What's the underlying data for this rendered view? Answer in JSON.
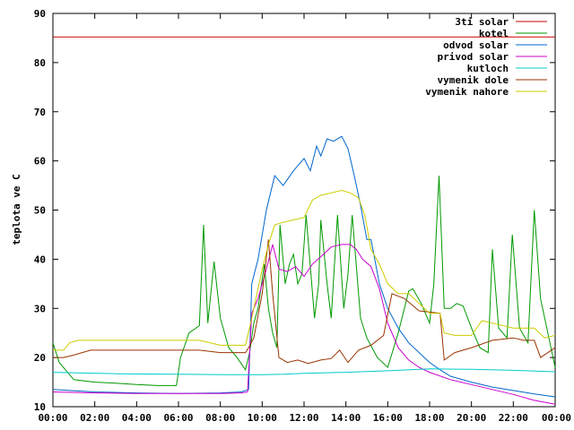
{
  "chart_data": {
    "type": "line",
    "title": "",
    "xlabel": "",
    "ylabel": "teplota ve C",
    "ylim": [
      10,
      90
    ],
    "xlim": [
      0,
      24
    ],
    "grid": false,
    "legend_position": "top-right",
    "x_tick_labels": [
      "00:00",
      "02:00",
      "04:00",
      "06:00",
      "08:00",
      "10:00",
      "12:00",
      "14:00",
      "16:00",
      "18:00",
      "20:00",
      "22:00",
      "00:00"
    ],
    "y_tick_labels": [
      "10",
      "20",
      "30",
      "40",
      "50",
      "60",
      "70",
      "80",
      "90"
    ],
    "series": [
      {
        "name": "3ti solar",
        "color": "#cc0000",
        "points": [
          [
            0,
            85.2
          ],
          [
            24,
            85.2
          ]
        ]
      },
      {
        "name": "kotel",
        "color": "#009900",
        "points": [
          [
            0,
            23
          ],
          [
            0.3,
            19
          ],
          [
            1,
            15.5
          ],
          [
            2,
            15
          ],
          [
            3,
            14.8
          ],
          [
            4,
            14.5
          ],
          [
            5,
            14.3
          ],
          [
            5.9,
            14.3
          ],
          [
            6.1,
            20
          ],
          [
            6.5,
            25
          ],
          [
            7,
            26.5
          ],
          [
            7.2,
            47
          ],
          [
            7.4,
            27
          ],
          [
            7.7,
            39.5
          ],
          [
            8,
            28
          ],
          [
            8.4,
            22
          ],
          [
            8.8,
            20
          ],
          [
            9.2,
            17.5
          ],
          [
            9.4,
            21
          ],
          [
            9.6,
            27
          ],
          [
            9.8,
            30
          ],
          [
            10.1,
            39
          ],
          [
            10.3,
            30
          ],
          [
            10.5,
            25
          ],
          [
            10.7,
            22
          ],
          [
            10.85,
            47
          ],
          [
            11.1,
            35
          ],
          [
            11.3,
            39
          ],
          [
            11.5,
            41
          ],
          [
            11.7,
            35
          ],
          [
            11.9,
            37
          ],
          [
            12.1,
            49
          ],
          [
            12.5,
            28
          ],
          [
            12.7,
            35
          ],
          [
            12.8,
            48
          ],
          [
            13.1,
            35
          ],
          [
            13.3,
            28
          ],
          [
            13.6,
            49
          ],
          [
            13.9,
            30
          ],
          [
            14.1,
            37
          ],
          [
            14.3,
            49
          ],
          [
            14.7,
            28
          ],
          [
            15,
            24
          ],
          [
            15.5,
            20
          ],
          [
            16,
            18
          ],
          [
            16.5,
            25
          ],
          [
            17,
            33.5
          ],
          [
            17.2,
            34
          ],
          [
            17.6,
            31
          ],
          [
            18,
            27
          ],
          [
            18.2,
            35
          ],
          [
            18.45,
            57
          ],
          [
            18.7,
            30
          ],
          [
            19,
            30
          ],
          [
            19.3,
            31
          ],
          [
            19.6,
            30.5
          ],
          [
            20,
            26
          ],
          [
            20.4,
            22
          ],
          [
            20.8,
            21
          ],
          [
            21,
            42
          ],
          [
            21.3,
            26
          ],
          [
            21.7,
            24
          ],
          [
            21.95,
            45
          ],
          [
            22.3,
            26
          ],
          [
            22.7,
            23
          ],
          [
            23,
            50
          ],
          [
            23.3,
            32
          ],
          [
            23.7,
            24
          ],
          [
            24,
            18
          ]
        ]
      },
      {
        "name": "odvod solar",
        "color": "#0066cc",
        "points": [
          [
            0,
            13.5
          ],
          [
            2,
            13
          ],
          [
            4,
            12.8
          ],
          [
            6,
            12.7
          ],
          [
            8,
            12.8
          ],
          [
            9,
            13
          ],
          [
            9.35,
            13.5
          ],
          [
            9.5,
            35
          ],
          [
            9.8,
            40
          ],
          [
            10.2,
            50
          ],
          [
            10.6,
            57
          ],
          [
            11,
            55
          ],
          [
            11.5,
            58
          ],
          [
            12,
            60.5
          ],
          [
            12.3,
            58
          ],
          [
            12.6,
            63
          ],
          [
            12.8,
            61
          ],
          [
            13.1,
            64.5
          ],
          [
            13.4,
            64
          ],
          [
            13.8,
            65
          ],
          [
            14.1,
            62.5
          ],
          [
            14.4,
            57
          ],
          [
            14.7,
            51
          ],
          [
            15,
            44
          ],
          [
            15.2,
            44
          ],
          [
            15.6,
            35
          ],
          [
            16,
            30
          ],
          [
            16.5,
            26
          ],
          [
            17,
            23
          ],
          [
            17.5,
            21
          ],
          [
            18,
            19
          ],
          [
            18.5,
            17.5
          ],
          [
            19,
            16.2
          ],
          [
            20,
            15
          ],
          [
            21,
            14
          ],
          [
            22,
            13.3
          ],
          [
            23,
            12.6
          ],
          [
            24,
            12
          ]
        ]
      },
      {
        "name": "privod solar",
        "color": "#cc00cc",
        "points": [
          [
            0,
            13
          ],
          [
            2,
            12.8
          ],
          [
            4,
            12.7
          ],
          [
            6,
            12.7
          ],
          [
            8,
            12.7
          ],
          [
            9,
            12.8
          ],
          [
            9.3,
            13
          ],
          [
            9.5,
            29
          ],
          [
            9.8,
            32
          ],
          [
            10.2,
            38
          ],
          [
            10.5,
            43
          ],
          [
            10.8,
            38
          ],
          [
            11.2,
            37.5
          ],
          [
            11.6,
            38.5
          ],
          [
            12,
            36.5
          ],
          [
            12.4,
            39
          ],
          [
            12.8,
            40.5
          ],
          [
            13.3,
            42.5
          ],
          [
            13.8,
            43
          ],
          [
            14.2,
            43
          ],
          [
            14.5,
            42
          ],
          [
            14.8,
            40
          ],
          [
            15.2,
            38.5
          ],
          [
            15.6,
            34
          ],
          [
            16,
            27
          ],
          [
            16.5,
            22
          ],
          [
            17,
            19.5
          ],
          [
            17.5,
            18
          ],
          [
            18,
            17
          ],
          [
            19,
            15.5
          ],
          [
            20,
            14.5
          ],
          [
            21,
            13.5
          ],
          [
            22,
            12.5
          ],
          [
            23,
            11.3
          ],
          [
            24,
            10.5
          ]
        ]
      },
      {
        "name": "kutloch",
        "color": "#00cccc",
        "points": [
          [
            0,
            17
          ],
          [
            3,
            16.7
          ],
          [
            6,
            16.6
          ],
          [
            9,
            16.5
          ],
          [
            10,
            16.5
          ],
          [
            11,
            16.6
          ],
          [
            12,
            16.8
          ],
          [
            14,
            17
          ],
          [
            16,
            17.3
          ],
          [
            18,
            17.7
          ],
          [
            20,
            17.6
          ],
          [
            22,
            17.4
          ],
          [
            24,
            17.1
          ]
        ]
      },
      {
        "name": "vymenik dole",
        "color": "#993300",
        "points": [
          [
            0,
            20
          ],
          [
            0.5,
            20
          ],
          [
            1,
            20.5
          ],
          [
            1.8,
            21.5
          ],
          [
            3,
            21.5
          ],
          [
            5,
            21.5
          ],
          [
            6,
            21.5
          ],
          [
            7,
            21.5
          ],
          [
            8,
            21
          ],
          [
            9.2,
            21
          ],
          [
            9.35,
            22
          ],
          [
            9.6,
            24
          ],
          [
            10,
            33
          ],
          [
            10.3,
            44
          ],
          [
            10.5,
            33
          ],
          [
            10.8,
            20
          ],
          [
            11.2,
            19
          ],
          [
            11.7,
            19.5
          ],
          [
            12.2,
            18.8
          ],
          [
            12.8,
            19.5
          ],
          [
            13.3,
            19.8
          ],
          [
            13.7,
            21.5
          ],
          [
            14.1,
            19
          ],
          [
            14.6,
            21.5
          ],
          [
            15.2,
            22.5
          ],
          [
            15.8,
            24.5
          ],
          [
            16.2,
            33
          ],
          [
            16.8,
            32
          ],
          [
            17.5,
            29.5
          ],
          [
            18.5,
            29
          ],
          [
            18.7,
            19.5
          ],
          [
            19.2,
            21
          ],
          [
            20,
            22
          ],
          [
            21,
            23.5
          ],
          [
            22,
            24
          ],
          [
            22.5,
            23.5
          ],
          [
            23,
            23.5
          ],
          [
            23.3,
            20
          ],
          [
            24,
            22
          ]
        ]
      },
      {
        "name": "vymenik nahore",
        "color": "#cccc00",
        "points": [
          [
            0,
            21.5
          ],
          [
            0.5,
            21.5
          ],
          [
            0.8,
            23
          ],
          [
            1.2,
            23.5
          ],
          [
            3,
            23.5
          ],
          [
            6,
            23.5
          ],
          [
            7,
            23.5
          ],
          [
            8,
            22.5
          ],
          [
            9.2,
            22.5
          ],
          [
            9.5,
            28
          ],
          [
            10,
            38
          ],
          [
            10.3,
            43
          ],
          [
            10.6,
            47
          ],
          [
            11,
            47.5
          ],
          [
            11.5,
            48
          ],
          [
            12,
            48.5
          ],
          [
            12.4,
            52
          ],
          [
            12.8,
            53
          ],
          [
            13.3,
            53.5
          ],
          [
            13.8,
            54
          ],
          [
            14.2,
            53.5
          ],
          [
            14.6,
            52.5
          ],
          [
            14.9,
            49
          ],
          [
            15.2,
            42
          ],
          [
            15.6,
            39
          ],
          [
            16,
            35
          ],
          [
            16.5,
            33
          ],
          [
            17,
            33
          ],
          [
            17.5,
            31
          ],
          [
            18,
            29
          ],
          [
            18.5,
            29
          ],
          [
            18.7,
            25
          ],
          [
            19.2,
            24.5
          ],
          [
            20,
            24.5
          ],
          [
            20.5,
            27.5
          ],
          [
            21,
            27
          ],
          [
            22,
            26
          ],
          [
            22.5,
            26
          ],
          [
            23,
            26
          ],
          [
            23.5,
            24
          ],
          [
            24,
            24.5
          ]
        ]
      }
    ]
  }
}
